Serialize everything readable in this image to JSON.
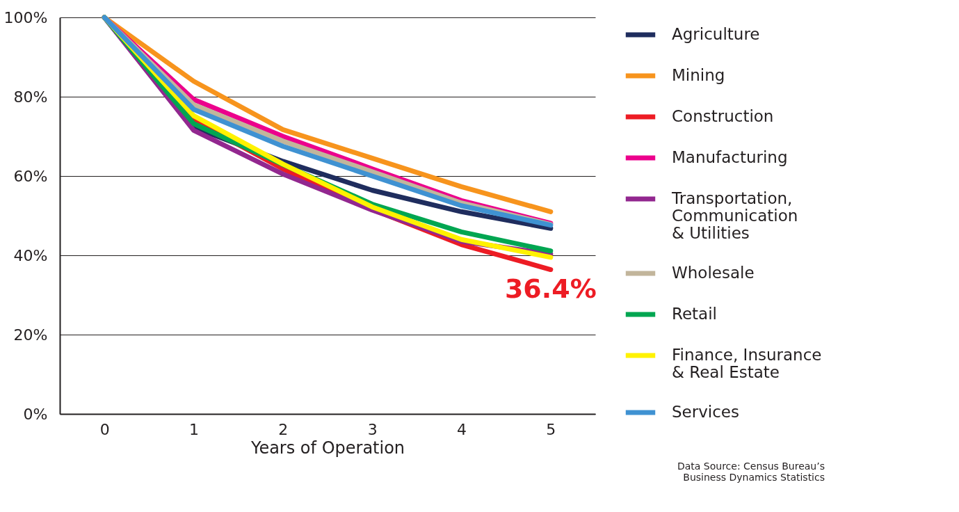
{
  "chart_data": {
    "type": "line",
    "xlabel": "Years of Operation",
    "categories": [
      "0",
      "1",
      "2",
      "3",
      "4",
      "5"
    ],
    "ylim": [
      0,
      100
    ],
    "yticks": [
      {
        "value": 0,
        "label": "0%"
      },
      {
        "value": 20,
        "label": "20%"
      },
      {
        "value": 40,
        "label": "40%"
      },
      {
        "value": 60,
        "label": "60%"
      },
      {
        "value": 80,
        "label": "80%"
      },
      {
        "value": 100,
        "label": "100%"
      }
    ],
    "grid": "y",
    "legend": "right",
    "series": [
      {
        "name": "Agriculture",
        "color": "#1f2d5e",
        "values": [
          100,
          72.3,
          63.7,
          56.4,
          51,
          46.8
        ]
      },
      {
        "name": "Mining",
        "color": "#f7941d",
        "values": [
          100,
          83.9,
          71.7,
          64.5,
          57.3,
          51
        ]
      },
      {
        "name": "Construction",
        "color": "#ed1c24",
        "values": [
          100,
          74,
          61.8,
          51.6,
          42.7,
          36.4
        ]
      },
      {
        "name": "Manufacturing",
        "color": "#ec008c",
        "values": [
          100,
          79.3,
          70,
          61.8,
          53.8,
          48.1
        ]
      },
      {
        "name": "Transportation,\nCommunication\n& Utilities",
        "color": "#92278f",
        "values": [
          100,
          71.5,
          60.5,
          51.4,
          43.5,
          40.3
        ]
      },
      {
        "name": "Wholesale",
        "color": "#c2b59b",
        "values": [
          100,
          78,
          68.8,
          61.1,
          53.2,
          47.8
        ]
      },
      {
        "name": "Retail",
        "color": "#00a651",
        "values": [
          100,
          73.2,
          62.9,
          52.9,
          45.9,
          41.1
        ]
      },
      {
        "name": "Finance, Insurance\n& Real Estate",
        "color": "#fff200",
        "values": [
          100,
          75.2,
          63,
          52.2,
          44,
          39.5
        ]
      },
      {
        "name": "Services",
        "color": "#3f92d2",
        "values": [
          100,
          76.8,
          67.5,
          60,
          52.5,
          47.6
        ]
      }
    ],
    "annotations": [
      {
        "text": "36.4%",
        "x": "5",
        "y": 36.4
      },
      "Data Source: Census Bureau’s\nBusiness Dynamics Statistics"
    ]
  }
}
